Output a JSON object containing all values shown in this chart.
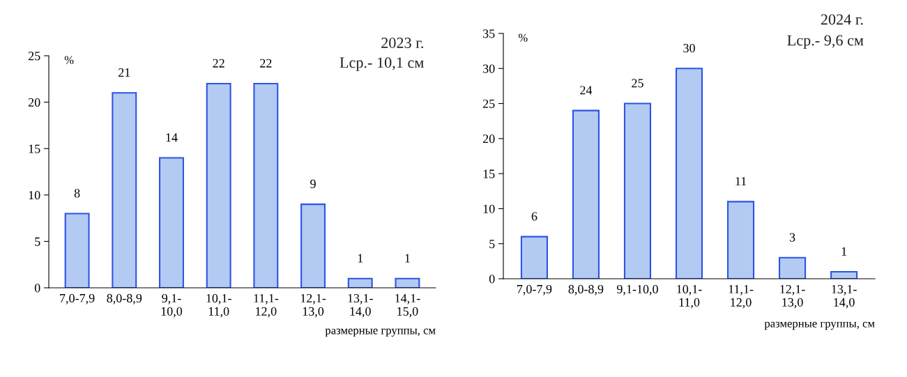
{
  "chart_data": [
    {
      "type": "bar",
      "categories": [
        "7,0-7,9",
        "8,0-8,9",
        "9,1-\n10,0",
        "10,1-\n11,0",
        "11,1-\n12,0",
        "12,1-\n13,0",
        "13,1-\n14,0",
        "14,1-\n15,0"
      ],
      "values": [
        8,
        21,
        14,
        22,
        22,
        9,
        1,
        1
      ],
      "color": "#b3cbf2",
      "ylim": [
        0,
        25
      ],
      "yticks": [
        0,
        5,
        10,
        15,
        20,
        25
      ],
      "ylabel": "%",
      "xlabel": "размерные группы, см",
      "annotations": [
        "2023 г.",
        "Lср.- 10,1 см"
      ],
      "data_labels": true,
      "grid": false,
      "legend": false
    },
    {
      "type": "bar",
      "categories": [
        "7,0-7,9",
        "8,0-8,9",
        "9,1-10,0",
        "10,1-\n11,0",
        "11,1-\n12,0",
        "12,1-\n13,0",
        "13,1-\n14,0"
      ],
      "values": [
        6,
        24,
        25,
        30,
        11,
        3,
        1
      ],
      "color": "#b3cbf2",
      "ylim": [
        0,
        35
      ],
      "yticks": [
        0,
        5,
        10,
        15,
        20,
        25,
        30,
        35
      ],
      "ylabel": "%",
      "xlabel": "размерные группы, см",
      "annotations": [
        "2024 г.",
        "Lср.- 9,6 см"
      ],
      "data_labels": true,
      "grid": false,
      "legend": false
    }
  ]
}
